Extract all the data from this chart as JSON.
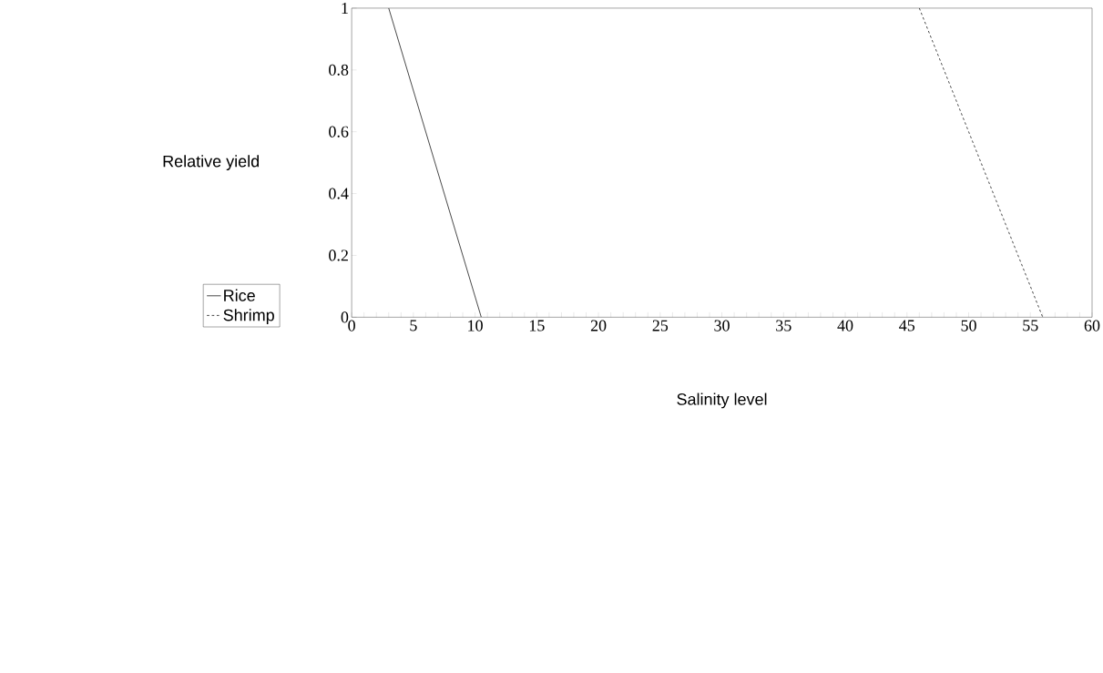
{
  "chart_data": {
    "type": "line",
    "xlabel": "Salinity level",
    "ylabel": "Relative yield",
    "xlim": [
      0,
      60
    ],
    "ylim": [
      0,
      1
    ],
    "xticks": [
      0,
      5,
      10,
      15,
      20,
      25,
      30,
      35,
      40,
      45,
      50,
      55,
      60
    ],
    "yticks": [
      0,
      0.2,
      0.4,
      0.6,
      0.8,
      1
    ],
    "grid": false,
    "legend": "bottom left",
    "marker": "none",
    "series": [
      {
        "name": "Rice",
        "color": "#000000",
        "line_style": "solid",
        "x": [
          3,
          10.5
        ],
        "values": [
          1,
          0
        ]
      },
      {
        "name": "Shrimp",
        "color": "#000000",
        "line_style": "dashed",
        "x": [
          46,
          56
        ],
        "values": [
          1,
          0
        ]
      }
    ]
  }
}
